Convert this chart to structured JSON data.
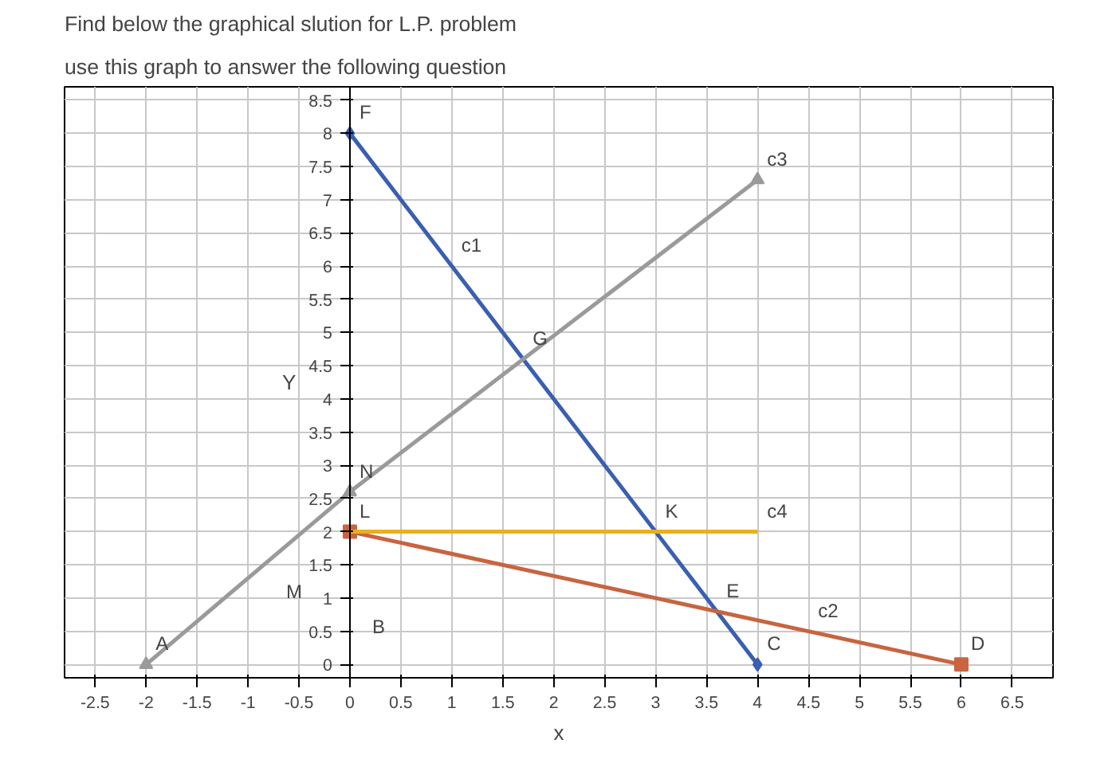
{
  "chart_data": {
    "type": "line",
    "title": "Find below the graphical slution for L.P. problem",
    "subtitle": "use this graph to answer the following question",
    "xlabel": "x",
    "ylabel": "Y",
    "series": [
      {
        "color": "#3a5fb0",
        "x": [
          0,
          4
        ],
        "values": [
          8,
          0
        ],
        "marker": "diamond"
      },
      {
        "color": "#c8643f",
        "x": [
          0,
          6
        ],
        "values": [
          2,
          0
        ],
        "marker": "square"
      },
      {
        "color": "#9a9a9a",
        "x": [
          -2,
          0,
          4
        ],
        "values": [
          0,
          2.6,
          7.3
        ],
        "marker": "triangle"
      },
      {
        "color": "#e8b020",
        "x": [
          0,
          4
        ],
        "values": [
          2,
          2
        ],
        "marker": "none"
      }
    ],
    "annotations": [
      {
        "text": "F",
        "x": 0,
        "y": 8
      },
      {
        "text": "c1",
        "x": 1,
        "y": 6
      },
      {
        "text": "G",
        "x": 1.7,
        "y": 4.6
      },
      {
        "text": "N",
        "x": 0,
        "y": 2.6
      },
      {
        "text": "L",
        "x": 0,
        "y": 2
      },
      "M",
      "B",
      {
        "text": "A",
        "x": -2,
        "y": 0
      },
      {
        "text": "K",
        "x": 3,
        "y": 2
      },
      {
        "text": "E",
        "x": 3.6,
        "y": 0.8
      },
      {
        "text": "C",
        "x": 4,
        "y": 0
      },
      {
        "text": "D",
        "x": 6,
        "y": 0
      },
      {
        "text": "c2",
        "x": 4.5,
        "y": 0.5
      },
      {
        "text": "c3",
        "x": 4,
        "y": 7.3
      },
      {
        "text": "c4",
        "x": 4,
        "y": 2
      }
    ],
    "xlim": [
      -2.8,
      6.9
    ],
    "ylim": [
      -0.2,
      8.7
    ],
    "xticks": [
      -2.5,
      -2,
      -1.5,
      -1,
      -0.5,
      0,
      0.5,
      1,
      1.5,
      2,
      2.5,
      3,
      3.5,
      4,
      4.5,
      5,
      5.5,
      6,
      6.5
    ],
    "yticks": [
      0,
      0.5,
      1,
      1.5,
      2,
      2.5,
      3,
      3.5,
      4,
      4.5,
      5,
      5.5,
      6,
      6.5,
      7,
      7.5,
      8,
      8.5
    ],
    "grid": true
  }
}
